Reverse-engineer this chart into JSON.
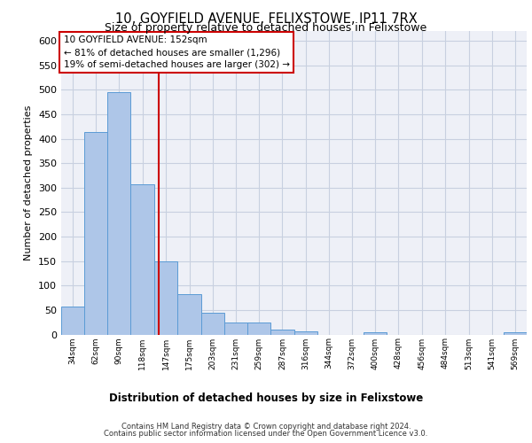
{
  "title": "10, GOYFIELD AVENUE, FELIXSTOWE, IP11 7RX",
  "subtitle": "Size of property relative to detached houses in Felixstowe",
  "xlabel": "Distribution of detached houses by size in Felixstowe",
  "ylabel": "Number of detached properties",
  "bar_heights": [
    57,
    413,
    496,
    307,
    150,
    82,
    45,
    25,
    25,
    10,
    7,
    0,
    0,
    5,
    0,
    0,
    0,
    0,
    0,
    5
  ],
  "bin_edges": [
    34,
    62,
    90,
    118,
    147,
    175,
    203,
    231,
    259,
    287,
    316,
    344,
    372,
    400,
    428,
    456,
    484,
    513,
    541,
    569,
    597
  ],
  "bar_color": "#aec6e8",
  "bar_edge_color": "#5b9bd5",
  "vline_x": 152,
  "vline_color": "#cc0000",
  "annotation_text": "10 GOYFIELD AVENUE: 152sqm\n← 81% of detached houses are smaller (1,296)\n19% of semi-detached houses are larger (302) →",
  "annotation_box_color": "#cc0000",
  "yticks": [
    0,
    50,
    100,
    150,
    200,
    250,
    300,
    350,
    400,
    450,
    500,
    550,
    600
  ],
  "ylim": [
    0,
    620
  ],
  "grid_color": "#c8d0e0",
  "background_color": "#eef0f7",
  "footer_line1": "Contains HM Land Registry data © Crown copyright and database right 2024.",
  "footer_line2": "Contains public sector information licensed under the Open Government Licence v3.0."
}
